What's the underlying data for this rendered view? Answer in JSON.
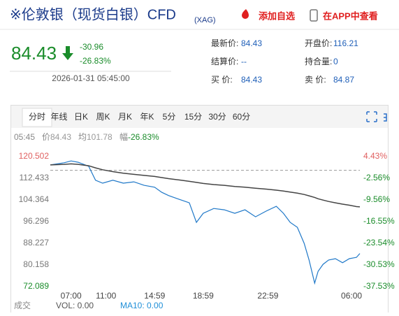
{
  "header": {
    "title": "※伦敦银（现货白银）CFD",
    "code": "(XAG)",
    "actions": [
      "添加自选",
      "在APP中查看"
    ]
  },
  "quote": {
    "price": "84.43",
    "change": "-30.96",
    "change_pct": "-26.83%",
    "time": "2026-01-31 05:45:00",
    "fields": [
      {
        "label": "最新价:",
        "value": "84.43"
      },
      {
        "label": "开盘价:",
        "value": "116.21"
      },
      {
        "label": "结算价:",
        "value": "--"
      },
      {
        "label": "持合量:",
        "value": "0"
      },
      {
        "label": "买 价:",
        "value": "84.43"
      },
      {
        "label": "卖 价:",
        "value": "84.87"
      }
    ]
  },
  "tabs": [
    "分时",
    "年线",
    "日K",
    "周K",
    "月K",
    "年K",
    "5分",
    "15分",
    "30分",
    "60分"
  ],
  "info": [
    "05:45",
    "价",
    "84.43",
    "均",
    "101.78",
    "幅",
    "-26.83%"
  ],
  "footer": [
    "成交",
    "VOL: 0.00",
    "MA10: 0.00"
  ],
  "chart_data": {
    "type": "line",
    "x": [
      0,
      4.5,
      6.7,
      9,
      12.4,
      14.6,
      16.9,
      20.2,
      23.6,
      27,
      30.3,
      33.7,
      36,
      38.2,
      41.6,
      44.9,
      47.2,
      49.4,
      52.8,
      56.2,
      59.6,
      62.9,
      66.3,
      69.7,
      73,
      75.3,
      77.5,
      79.8,
      82,
      83.6,
      85.4,
      86.5,
      88.1,
      89.9,
      92.1,
      94.4,
      96.6,
      98.9,
      100
    ],
    "series": [
      {
        "color": "#1f78c8",
        "values": [
          117.4,
          118.2,
          118.9,
          118.4,
          116.9,
          111.7,
          110.6,
          111.7,
          110.6,
          111.1,
          109.8,
          109.1,
          107.2,
          106,
          104.6,
          103.3,
          96.0,
          99.4,
          101.2,
          100.7,
          99.4,
          100.7,
          98.1,
          100.2,
          102.0,
          99.4,
          96.0,
          94.2,
          88.2,
          82.0,
          73.4,
          77.8,
          80.4,
          82.0,
          82.5,
          81.0,
          82.5,
          83.0,
          84.43
        ]
      },
      {
        "color": "#444444",
        "values": [
          117.4,
          117.6,
          117.8,
          117.6,
          117.1,
          116.3,
          115.6,
          114.9,
          114.3,
          113.9,
          113.5,
          113.1,
          112.7,
          112.3,
          111.8,
          111.3,
          110.9,
          110.5,
          110.1,
          109.8,
          109.4,
          109.1,
          108.7,
          108.4,
          108.0,
          107.7,
          107.3,
          106.9,
          106.4,
          105.9,
          105.3,
          104.8,
          104.3,
          103.8,
          103.3,
          102.8,
          102.4,
          101.9,
          101.78
        ]
      }
    ],
    "reference_line": 115.39,
    "xlim": [
      0,
      100
    ],
    "xticks": [
      {
        "value": 6.7,
        "label": "07:00"
      },
      {
        "value": 18,
        "label": "11:00"
      },
      {
        "value": 33.7,
        "label": "14:59"
      },
      {
        "value": 49.4,
        "label": "18:59"
      },
      {
        "value": 70.3,
        "label": "22:59"
      },
      {
        "value": 97.3,
        "label": "06:00"
      }
    ],
    "ylim": [
      72.089,
      120.502
    ],
    "yticks": [
      72.089,
      80.158,
      88.227,
      96.296,
      104.364,
      112.433,
      120.502
    ],
    "y2lim": [
      -37.53,
      4.43
    ],
    "y2ticks": [
      {
        "value": -37.53,
        "label": "-37.53%"
      },
      {
        "value": -30.53,
        "label": "-30.53%"
      },
      {
        "value": -23.54,
        "label": "-23.54%"
      },
      {
        "value": -16.55,
        "label": "-16.55%"
      },
      {
        "value": -9.56,
        "label": "-9.56%"
      },
      {
        "value": -2.56,
        "label": "-2.56%"
      },
      {
        "value": 4.43,
        "label": "4.43%"
      }
    ]
  }
}
